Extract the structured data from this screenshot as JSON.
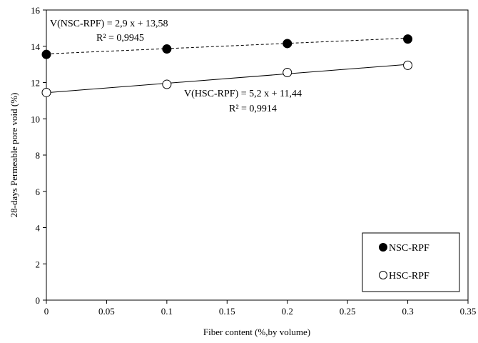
{
  "chart_data": {
    "type": "scatter",
    "title": "",
    "xlabel": "Fiber content (%,by volume)",
    "ylabel": "28-days Permeable pore void (%)",
    "xlim": [
      0,
      0.35
    ],
    "ylim": [
      0,
      16
    ],
    "x_ticks": [
      "0",
      "0.05",
      "0.1",
      "0.15",
      "0.2",
      "0.25",
      "0.3",
      "0.35"
    ],
    "y_ticks": [
      "0",
      "2",
      "4",
      "6",
      "8",
      "10",
      "12",
      "14",
      "16"
    ],
    "grid": false,
    "legend_position": "bottom-right",
    "series": [
      {
        "name": "NSC-RPF",
        "marker": "filled-circle",
        "line_style": "dashed",
        "color": "#000000",
        "x": [
          0,
          0.1,
          0.2,
          0.3
        ],
        "y": [
          13.55,
          13.85,
          14.15,
          14.4
        ],
        "trendline": {
          "slope": 2.9,
          "intercept": 13.58
        },
        "equation": "V(NSC-RPF)  = 2,9 x + 13,58",
        "r2": "R² = 0,9945"
      },
      {
        "name": "HSC-RPF",
        "marker": "open-circle",
        "line_style": "solid",
        "color": "#000000",
        "x": [
          0,
          0.1,
          0.2,
          0.3
        ],
        "y": [
          11.45,
          11.9,
          12.55,
          12.95
        ],
        "trendline": {
          "slope": 5.2,
          "intercept": 11.44
        },
        "equation": "V(HSC-RPF)  = 5,2 x + 11,44",
        "r2": "R² = 0,9914"
      }
    ]
  }
}
